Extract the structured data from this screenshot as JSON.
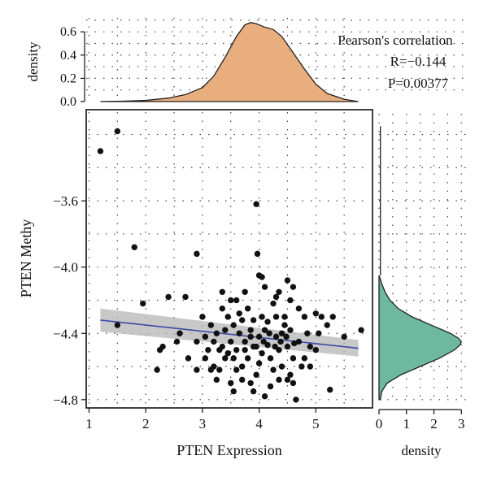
{
  "chart_data": [
    {
      "panel": "top-marginal",
      "type": "area",
      "ylabel": "density",
      "yticks": [
        0.0,
        0.2,
        0.4,
        0.6
      ],
      "ylim": [
        0,
        0.72
      ],
      "xlim": [
        0.95,
        6.0
      ],
      "fill_color": "#E8AE7E",
      "x": [
        1.2,
        1.6,
        2.0,
        2.4,
        2.7,
        3.0,
        3.2,
        3.4,
        3.6,
        3.75,
        3.85,
        3.95,
        4.1,
        4.25,
        4.4,
        4.6,
        4.8,
        5.0,
        5.2,
        5.5,
        5.75
      ],
      "y": [
        0.0,
        0.003,
        0.01,
        0.03,
        0.06,
        0.12,
        0.22,
        0.38,
        0.56,
        0.66,
        0.68,
        0.67,
        0.64,
        0.62,
        0.56,
        0.42,
        0.28,
        0.15,
        0.07,
        0.02,
        0.0
      ]
    },
    {
      "panel": "main-scatter",
      "type": "scatter",
      "xlabel": "PTEN Expression",
      "ylabel": "PTEN Methy",
      "xlim": [
        0.95,
        6.0
      ],
      "ylim": [
        -4.85,
        -3.05
      ],
      "xticks": [
        1,
        2,
        3,
        4,
        5
      ],
      "yticks": [
        -4.8,
        -4.4,
        -4.0,
        -3.6
      ],
      "ytick_labels": [
        "−4.8",
        "−4.4",
        "−4.0",
        "−3.6"
      ],
      "grid": "dotted",
      "points": [
        [
          1.2,
          -3.3
        ],
        [
          1.5,
          -3.18
        ],
        [
          1.8,
          -3.88
        ],
        [
          2.9,
          -3.92
        ],
        [
          3.95,
          -3.62
        ],
        [
          3.97,
          -3.92
        ],
        [
          4.0,
          -4.05
        ],
        [
          4.05,
          -4.06
        ],
        [
          2.4,
          -4.18
        ],
        [
          2.7,
          -4.18
        ],
        [
          3.35,
          -4.15
        ],
        [
          4.5,
          -4.08
        ],
        [
          4.1,
          -4.12
        ],
        [
          4.35,
          -4.15
        ],
        [
          4.6,
          -4.12
        ],
        [
          5.1,
          -4.3
        ],
        [
          5.3,
          -4.3
        ],
        [
          1.5,
          -4.35
        ],
        [
          1.95,
          -4.22
        ],
        [
          2.25,
          -4.5
        ],
        [
          2.2,
          -4.62
        ],
        [
          2.3,
          -4.48
        ],
        [
          2.6,
          -4.4
        ],
        [
          2.9,
          -4.45
        ],
        [
          2.9,
          -4.62
        ],
        [
          3.05,
          -4.42
        ],
        [
          3.2,
          -4.6
        ],
        [
          3.3,
          -4.5
        ],
        [
          3.5,
          -4.7
        ],
        [
          3.55,
          -4.75
        ],
        [
          3.9,
          -4.75
        ],
        [
          4.1,
          -4.78
        ],
        [
          4.2,
          -4.72
        ],
        [
          4.65,
          -4.8
        ],
        [
          4.5,
          -4.68
        ],
        [
          4.8,
          -4.55
        ],
        [
          5.0,
          -4.5
        ],
        [
          5.25,
          -4.74
        ],
        [
          5.2,
          -4.35
        ],
        [
          5.5,
          -4.42
        ],
        [
          5.8,
          -4.38
        ],
        [
          2.75,
          -4.55
        ],
        [
          2.55,
          -4.45
        ],
        [
          3.0,
          -4.3
        ],
        [
          3.15,
          -4.35
        ],
        [
          3.6,
          -4.2
        ],
        [
          3.8,
          -4.25
        ],
        [
          4.25,
          -4.22
        ],
        [
          4.7,
          -4.25
        ],
        [
          4.45,
          -4.3
        ],
        [
          3.45,
          -4.3
        ],
        [
          3.7,
          -4.32
        ],
        [
          3.1,
          -4.5
        ],
        [
          3.25,
          -4.4
        ],
        [
          3.4,
          -4.38
        ],
        [
          3.5,
          -4.45
        ],
        [
          3.6,
          -4.5
        ],
        [
          3.65,
          -4.4
        ],
        [
          3.75,
          -4.45
        ],
        [
          3.8,
          -4.55
        ],
        [
          3.85,
          -4.38
        ],
        [
          3.9,
          -4.48
        ],
        [
          4.0,
          -4.42
        ],
        [
          4.05,
          -4.52
        ],
        [
          4.1,
          -4.38
        ],
        [
          4.15,
          -4.47
        ],
        [
          4.2,
          -4.55
        ],
        [
          4.3,
          -4.42
        ],
        [
          4.35,
          -4.5
        ],
        [
          4.4,
          -4.4
        ],
        [
          4.5,
          -4.48
        ],
        [
          4.55,
          -4.38
        ],
        [
          4.6,
          -4.55
        ],
        [
          4.7,
          -4.45
        ],
        [
          4.85,
          -4.4
        ],
        [
          4.9,
          -4.48
        ],
        [
          3.3,
          -4.62
        ],
        [
          3.4,
          -4.55
        ],
        [
          3.6,
          -4.62
        ],
        [
          3.7,
          -4.6
        ],
        [
          3.95,
          -4.65
        ],
        [
          4.0,
          -4.58
        ],
        [
          4.25,
          -4.62
        ],
        [
          4.4,
          -4.6
        ],
        [
          4.55,
          -4.65
        ],
        [
          4.75,
          -4.6
        ],
        [
          3.55,
          -4.35
        ],
        [
          3.65,
          -4.28
        ],
        [
          3.9,
          -4.32
        ],
        [
          4.05,
          -4.3
        ],
        [
          4.15,
          -4.33
        ],
        [
          4.3,
          -4.3
        ],
        [
          4.45,
          -4.35
        ],
        [
          3.2,
          -4.45
        ],
        [
          3.35,
          -4.48
        ],
        [
          3.45,
          -4.52
        ],
        [
          3.55,
          -4.55
        ],
        [
          3.75,
          -4.5
        ],
        [
          3.85,
          -4.42
        ],
        [
          3.95,
          -4.48
        ],
        [
          4.08,
          -4.45
        ],
        [
          4.18,
          -4.4
        ],
        [
          4.28,
          -4.48
        ],
        [
          4.38,
          -4.45
        ],
        [
          4.48,
          -4.42
        ],
        [
          4.62,
          -4.46
        ],
        [
          3.05,
          -4.55
        ],
        [
          3.15,
          -4.62
        ],
        [
          3.25,
          -4.68
        ],
        [
          3.7,
          -4.68
        ],
        [
          3.85,
          -4.7
        ],
        [
          4.35,
          -4.68
        ],
        [
          4.6,
          -4.7
        ],
        [
          4.9,
          -4.6
        ],
        [
          5.05,
          -4.4
        ],
        [
          5.0,
          -4.28
        ],
        [
          4.8,
          -4.3
        ],
        [
          3.35,
          -4.25
        ],
        [
          3.5,
          -4.2
        ],
        [
          3.75,
          -4.15
        ],
        [
          4.3,
          -4.18
        ],
        [
          4.55,
          -4.2
        ]
      ],
      "trend_line": {
        "x": [
          1.2,
          5.75
        ],
        "y": [
          -4.32,
          -4.49
        ],
        "color": "#3B4BA3"
      },
      "confidence_band": {
        "x": [
          1.2,
          5.75
        ],
        "upper": [
          -4.25,
          -4.44
        ],
        "lower": [
          -4.39,
          -4.54
        ],
        "color": "#B5B5B5"
      }
    },
    {
      "panel": "right-marginal",
      "type": "area",
      "xlabel": "density",
      "xticks": [
        0,
        1,
        2,
        3
      ],
      "xlim": [
        0,
        3.2
      ],
      "fill_color": "#6DB89F",
      "y": [
        -4.8,
        -4.75,
        -4.7,
        -4.65,
        -4.6,
        -4.55,
        -4.5,
        -4.47,
        -4.45,
        -4.43,
        -4.4,
        -4.35,
        -4.3,
        -4.25,
        -4.2,
        -4.15,
        -4.1,
        -4.05
      ],
      "density": [
        0.05,
        0.1,
        0.3,
        0.8,
        1.5,
        2.2,
        2.75,
        2.95,
        3.0,
        2.9,
        2.6,
        1.9,
        1.2,
        0.7,
        0.4,
        0.22,
        0.1,
        0.0
      ]
    }
  ],
  "annotation": {
    "title": "Pearson's correlation",
    "r_text": "R=−0.144",
    "p_text": "P=0.00377"
  },
  "labels": {
    "top_ylabel": "density",
    "main_xlabel": "PTEN Expression",
    "main_ylabel": "PTEN Methy",
    "right_xlabel": "density"
  },
  "colors": {
    "point": "#111111",
    "grid_dot": "#444444"
  }
}
